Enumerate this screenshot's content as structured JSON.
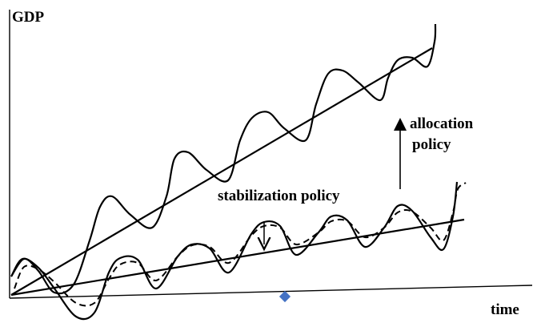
{
  "diagram": {
    "y_axis_label": "GDP",
    "x_axis_label": "time",
    "labels": {
      "stabilization": "stabilization policy",
      "allocation_line1": "allocation",
      "allocation_line2": "policy"
    },
    "elements": [
      "y-axis",
      "x-axis",
      "high-trend-line",
      "high-oscillation-curve",
      "low-trend-line",
      "low-oscillation-curve-solid",
      "low-oscillation-curve-dashed",
      "allocation-arrow",
      "stabilization-arrow",
      "diamond-marker"
    ],
    "marker_color": "#4472c4"
  }
}
